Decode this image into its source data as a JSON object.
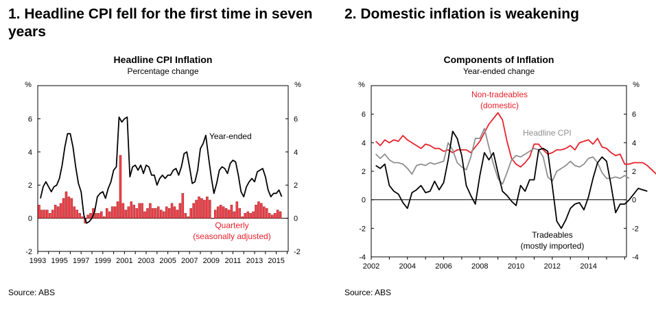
{
  "panels": [
    {
      "heading": "1. Headline CPI fell for the first time in seven years",
      "source": "Source: ABS"
    },
    {
      "heading": "2. Domestic inflation is weakening",
      "source": "Source: ABS"
    }
  ],
  "chart_data": [
    {
      "type": "bar+line",
      "title": "Headline CPI Inflation",
      "subtitle": "Percentage change",
      "ylabel_left": "%",
      "ylabel_right": "%",
      "ylim": [
        -2,
        8
      ],
      "yticks": [
        -2,
        0,
        2,
        4,
        6
      ],
      "xlim": [
        1993.0,
        2016.1
      ],
      "xticks": [
        "1993",
        "1995",
        "1997",
        "1999",
        "2001",
        "2003",
        "2005",
        "2007",
        "2009",
        "2011",
        "2013",
        "2015"
      ],
      "grid": false,
      "series": [
        {
          "name": "Year-ended",
          "kind": "line",
          "color": "#000000",
          "x_start": 1993.0,
          "x_step": 0.25,
          "values": [
            1.2,
            1.9,
            2.2,
            1.9,
            1.6,
            1.9,
            2.0,
            2.4,
            3.2,
            4.3,
            5.1,
            5.1,
            4.3,
            3.1,
            2.1,
            1.6,
            0.2,
            -0.3,
            -0.2,
            0.0,
            0.4,
            1.3,
            1.5,
            1.6,
            1.2,
            1.8,
            2.2,
            2.9,
            3.1,
            6.1,
            5.8,
            6.0,
            6.1,
            2.5,
            3.1,
            3.2,
            2.9,
            3.2,
            2.7,
            3.2,
            3.1,
            2.6,
            2.6,
            2.0,
            2.4,
            2.6,
            2.4,
            2.6,
            2.6,
            2.9,
            3.0,
            2.6,
            3.1,
            3.9,
            4.0,
            3.1,
            2.1,
            2.2,
            2.9,
            4.2,
            4.5,
            5.0,
            3.7,
            2.5,
            1.5,
            2.1,
            2.9,
            3.1,
            3.0,
            2.7,
            3.3,
            3.5,
            3.4,
            2.6,
            1.6,
            1.3,
            1.9,
            2.2,
            2.4,
            2.2,
            2.8,
            2.9,
            3.0,
            2.5,
            1.7,
            1.3,
            1.5,
            1.5,
            1.7,
            1.3
          ]
        },
        {
          "name": "Quarterly",
          "label": "Quarterly",
          "label_line2": "(seasonally adjusted)",
          "kind": "bar",
          "color": "#f4404a",
          "x_start": 1993.0,
          "x_step": 0.25,
          "values": [
            0.8,
            0.5,
            0.5,
            0.5,
            0.3,
            0.5,
            0.8,
            0.7,
            0.9,
            1.2,
            1.6,
            1.3,
            1.2,
            0.7,
            0.5,
            0.3,
            0.1,
            -0.3,
            0.2,
            0.3,
            0.6,
            0.3,
            0.3,
            0.4,
            0.1,
            0.6,
            0.4,
            0.7,
            0.7,
            1.0,
            3.8,
            0.9,
            0.5,
            0.7,
            1.0,
            0.8,
            0.6,
            0.9,
            0.9,
            0.4,
            0.6,
            0.9,
            0.6,
            0.6,
            0.7,
            0.5,
            0.4,
            0.7,
            0.6,
            0.9,
            0.7,
            0.5,
            0.9,
            1.5,
            0.3,
            0.1,
            0.6,
            0.9,
            1.1,
            1.3,
            1.2,
            1.1,
            1.3,
            1.1,
            0.0,
            0.5,
            0.7,
            0.8,
            0.7,
            0.6,
            0.5,
            0.8,
            0.4,
            1.0,
            0.6,
            0.1,
            0.3,
            0.4,
            0.3,
            0.4,
            0.8,
            1.0,
            0.9,
            0.7,
            0.6,
            0.3,
            0.2,
            0.3,
            0.5,
            0.4
          ]
        }
      ],
      "line_label": "Year-ended"
    },
    {
      "type": "line",
      "title": "Components of Inflation",
      "subtitle": "Year-ended change",
      "ylabel_left": "%",
      "ylabel_right": "%",
      "ylim": [
        -4,
        8
      ],
      "yticks": [
        -4,
        -2,
        0,
        2,
        4,
        6
      ],
      "xlim": [
        2002.0,
        2016.1
      ],
      "xticks": [
        "2002",
        "2004",
        "2006",
        "2008",
        "2010",
        "2012",
        "2014"
      ],
      "grid": false,
      "series": [
        {
          "name": "Non-tradeables",
          "label": "Non-tradeables",
          "label_line2": "(domestic)",
          "color": "#e8202a",
          "x_start": 2002.0,
          "x_step": 0.25,
          "values": [
            4.1,
            3.8,
            4.2,
            4.0,
            4.2,
            4.1,
            4.5,
            4.2,
            4.0,
            3.8,
            3.6,
            3.9,
            3.8,
            3.6,
            3.6,
            3.4,
            3.5,
            3.3,
            3.5,
            3.5,
            3.5,
            3.3,
            3.7,
            4.1,
            4.7,
            5.3,
            5.7,
            6.1,
            5.6,
            4.1,
            2.9,
            2.5,
            2.3,
            2.6,
            3.0,
            3.9,
            3.9,
            3.5,
            3.2,
            3.3,
            3.5,
            3.5,
            3.6,
            3.8,
            3.5,
            4.0,
            4.1,
            4.2,
            3.9,
            4.3,
            3.7,
            3.6,
            3.3,
            3.1,
            3.2,
            2.5,
            2.5,
            2.6,
            2.6,
            2.6,
            2.4,
            2.1,
            1.8
          ]
        },
        {
          "name": "Headline CPI",
          "label": "Headline CPI",
          "color": "#8f8f8f",
          "x_start": 2002.0,
          "x_step": 0.25,
          "values": [
            3.2,
            2.9,
            3.2,
            2.8,
            2.6,
            2.6,
            2.5,
            2.2,
            1.8,
            2.4,
            2.5,
            2.4,
            2.6,
            2.5,
            2.6,
            2.7,
            4.0,
            3.5,
            2.6,
            2.3,
            2.1,
            3.0,
            4.3,
            4.3,
            5.0,
            3.7,
            2.5,
            1.5,
            1.1,
            1.9,
            2.8,
            3.1,
            3.0,
            3.2,
            3.4,
            3.6,
            3.5,
            3.0,
            1.6,
            1.3,
            2.0,
            2.2,
            2.4,
            2.7,
            2.4,
            2.3,
            2.5,
            2.9,
            3.0,
            2.6,
            1.9,
            1.5,
            1.5,
            1.6,
            1.5,
            1.7,
            1.5
          ]
        },
        {
          "name": "Tradeables",
          "label": "Tradeables",
          "label_line2": "(mostly imported)",
          "color": "#000000",
          "x_start": 2002.0,
          "x_step": 0.25,
          "values": [
            2.4,
            2.2,
            2.5,
            1.0,
            0.6,
            0.4,
            -0.2,
            -0.6,
            0.5,
            0.7,
            1.0,
            0.5,
            0.6,
            1.3,
            0.7,
            1.2,
            2.8,
            4.8,
            4.3,
            3.1,
            1.0,
            0.3,
            -0.3,
            1.7,
            3.3,
            2.8,
            3.3,
            1.9,
            0.6,
            0.3,
            -0.1,
            -0.4,
            1.0,
            0.6,
            1.4,
            1.4,
            3.5,
            3.6,
            3.4,
            1.0,
            -1.5,
            -2.0,
            -1.4,
            -0.6,
            -0.3,
            -0.2,
            -0.7,
            0.2,
            1.5,
            2.6,
            3.0,
            2.7,
            1.0,
            -0.9,
            -0.3,
            -0.3,
            0.0,
            0.4,
            0.8,
            0.7,
            0.6
          ]
        }
      ]
    }
  ]
}
